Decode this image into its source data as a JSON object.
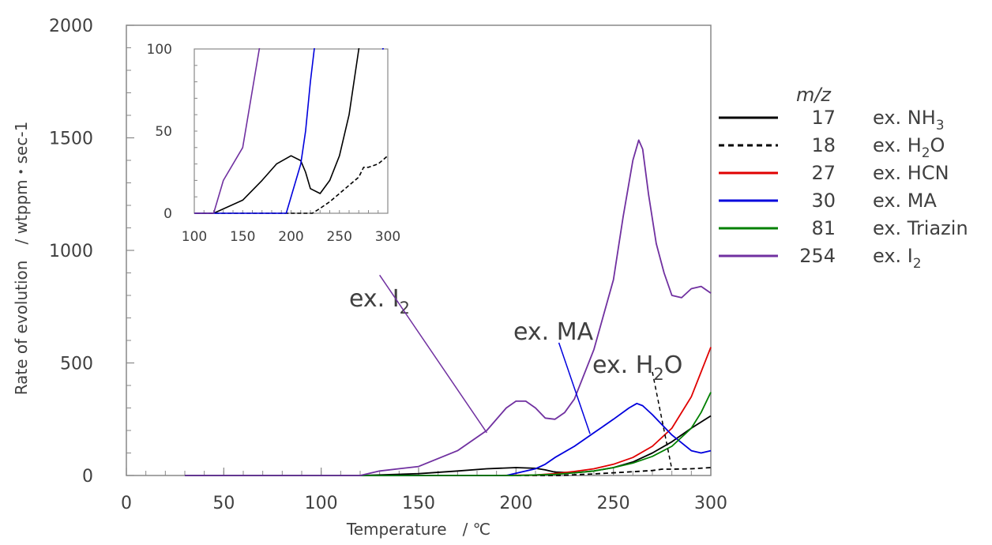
{
  "chart_data": {
    "type": "line",
    "title": "",
    "xlabel": "Temperature　/ ℃",
    "ylabel": "Rate of evolution　/ wtppm・sec-1",
    "xlim": [
      0,
      300
    ],
    "ylim": [
      0,
      2000
    ],
    "xticks": [
      "0",
      "50",
      "100",
      "150",
      "200",
      "250",
      "300"
    ],
    "yticks": [
      "0",
      "500",
      "1000",
      "1500",
      "2000"
    ],
    "grid": false,
    "legend_placement": "right",
    "legend_header": "m/z",
    "series": [
      {
        "mz": "17",
        "name_base": "ex. NH",
        "name_sub": "3",
        "color": "#000000",
        "dash": "solid",
        "x": [
          30,
          120,
          150,
          170,
          185,
          200,
          210,
          215,
          220,
          230,
          240,
          250,
          260,
          270,
          280,
          290,
          300
        ],
        "y": [
          0,
          0,
          8,
          20,
          30,
          35,
          32,
          25,
          15,
          12,
          20,
          35,
          60,
          100,
          150,
          210,
          265
        ]
      },
      {
        "mz": "18",
        "name_base": "ex. H",
        "name_sub": "2",
        "name_tail": "O",
        "color": "#000000",
        "dash": "dashed",
        "x": [
          30,
          200,
          222,
          230,
          240,
          250,
          260,
          270,
          275,
          280,
          290,
          300
        ],
        "y": [
          0,
          0,
          0,
          3,
          7,
          12,
          17,
          22,
          28,
          28,
          30,
          35
        ]
      },
      {
        "mz": "27",
        "name_base": "ex. HCN",
        "color": "#e00000",
        "dash": "solid",
        "x": [
          30,
          190,
          210,
          220,
          230,
          240,
          250,
          260,
          270,
          280,
          290,
          300
        ],
        "y": [
          0,
          0,
          2,
          8,
          18,
          30,
          50,
          80,
          130,
          210,
          350,
          570
        ]
      },
      {
        "mz": "30",
        "name_base": "ex. MA",
        "color": "#0000dd",
        "dash": "solid",
        "x": [
          30,
          195,
          210,
          215,
          220,
          230,
          240,
          250,
          258,
          262,
          265,
          270,
          280,
          290,
          295,
          300
        ],
        "y": [
          0,
          0,
          30,
          50,
          80,
          130,
          190,
          250,
          300,
          320,
          310,
          270,
          180,
          110,
          100,
          110
        ]
      },
      {
        "mz": "81",
        "name_base": "ex. Triazin",
        "color": "#008000",
        "dash": "solid",
        "x": [
          30,
          200,
          220,
          230,
          240,
          250,
          260,
          270,
          280,
          290,
          295,
          300
        ],
        "y": [
          0,
          0,
          5,
          12,
          20,
          35,
          55,
          85,
          130,
          210,
          280,
          370
        ]
      },
      {
        "mz": "254",
        "name_base": "ex. I",
        "name_sub": "2",
        "color": "#7030a0",
        "dash": "solid",
        "x": [
          30,
          120,
          130,
          150,
          170,
          185,
          195,
          200,
          205,
          210,
          215,
          220,
          225,
          230,
          240,
          250,
          255,
          260,
          263,
          265,
          268,
          272,
          276,
          280,
          285,
          290,
          295,
          300
        ],
        "y": [
          0,
          0,
          20,
          40,
          110,
          200,
          300,
          330,
          330,
          300,
          255,
          250,
          280,
          340,
          560,
          870,
          1150,
          1400,
          1490,
          1450,
          1250,
          1030,
          900,
          800,
          790,
          830,
          840,
          810
        ]
      }
    ],
    "annotations": [
      {
        "base": "ex. I",
        "sub": "2",
        "from": [
          130,
          890
        ],
        "to": [
          185,
          190
        ]
      },
      {
        "base": "ex. MA",
        "from": [
          222,
          590
        ],
        "to": [
          238,
          185
        ]
      },
      {
        "base": "ex. H",
        "sub": "2",
        "tail": "O",
        "from": [
          270,
          460
        ],
        "to": [
          280,
          28
        ]
      }
    ],
    "inset": {
      "xlim": [
        100,
        300
      ],
      "ylim": [
        0,
        100
      ],
      "xticks": [
        "100",
        "150",
        "200",
        "250",
        "300"
      ],
      "yticks": [
        "0",
        "50",
        "100"
      ]
    }
  }
}
